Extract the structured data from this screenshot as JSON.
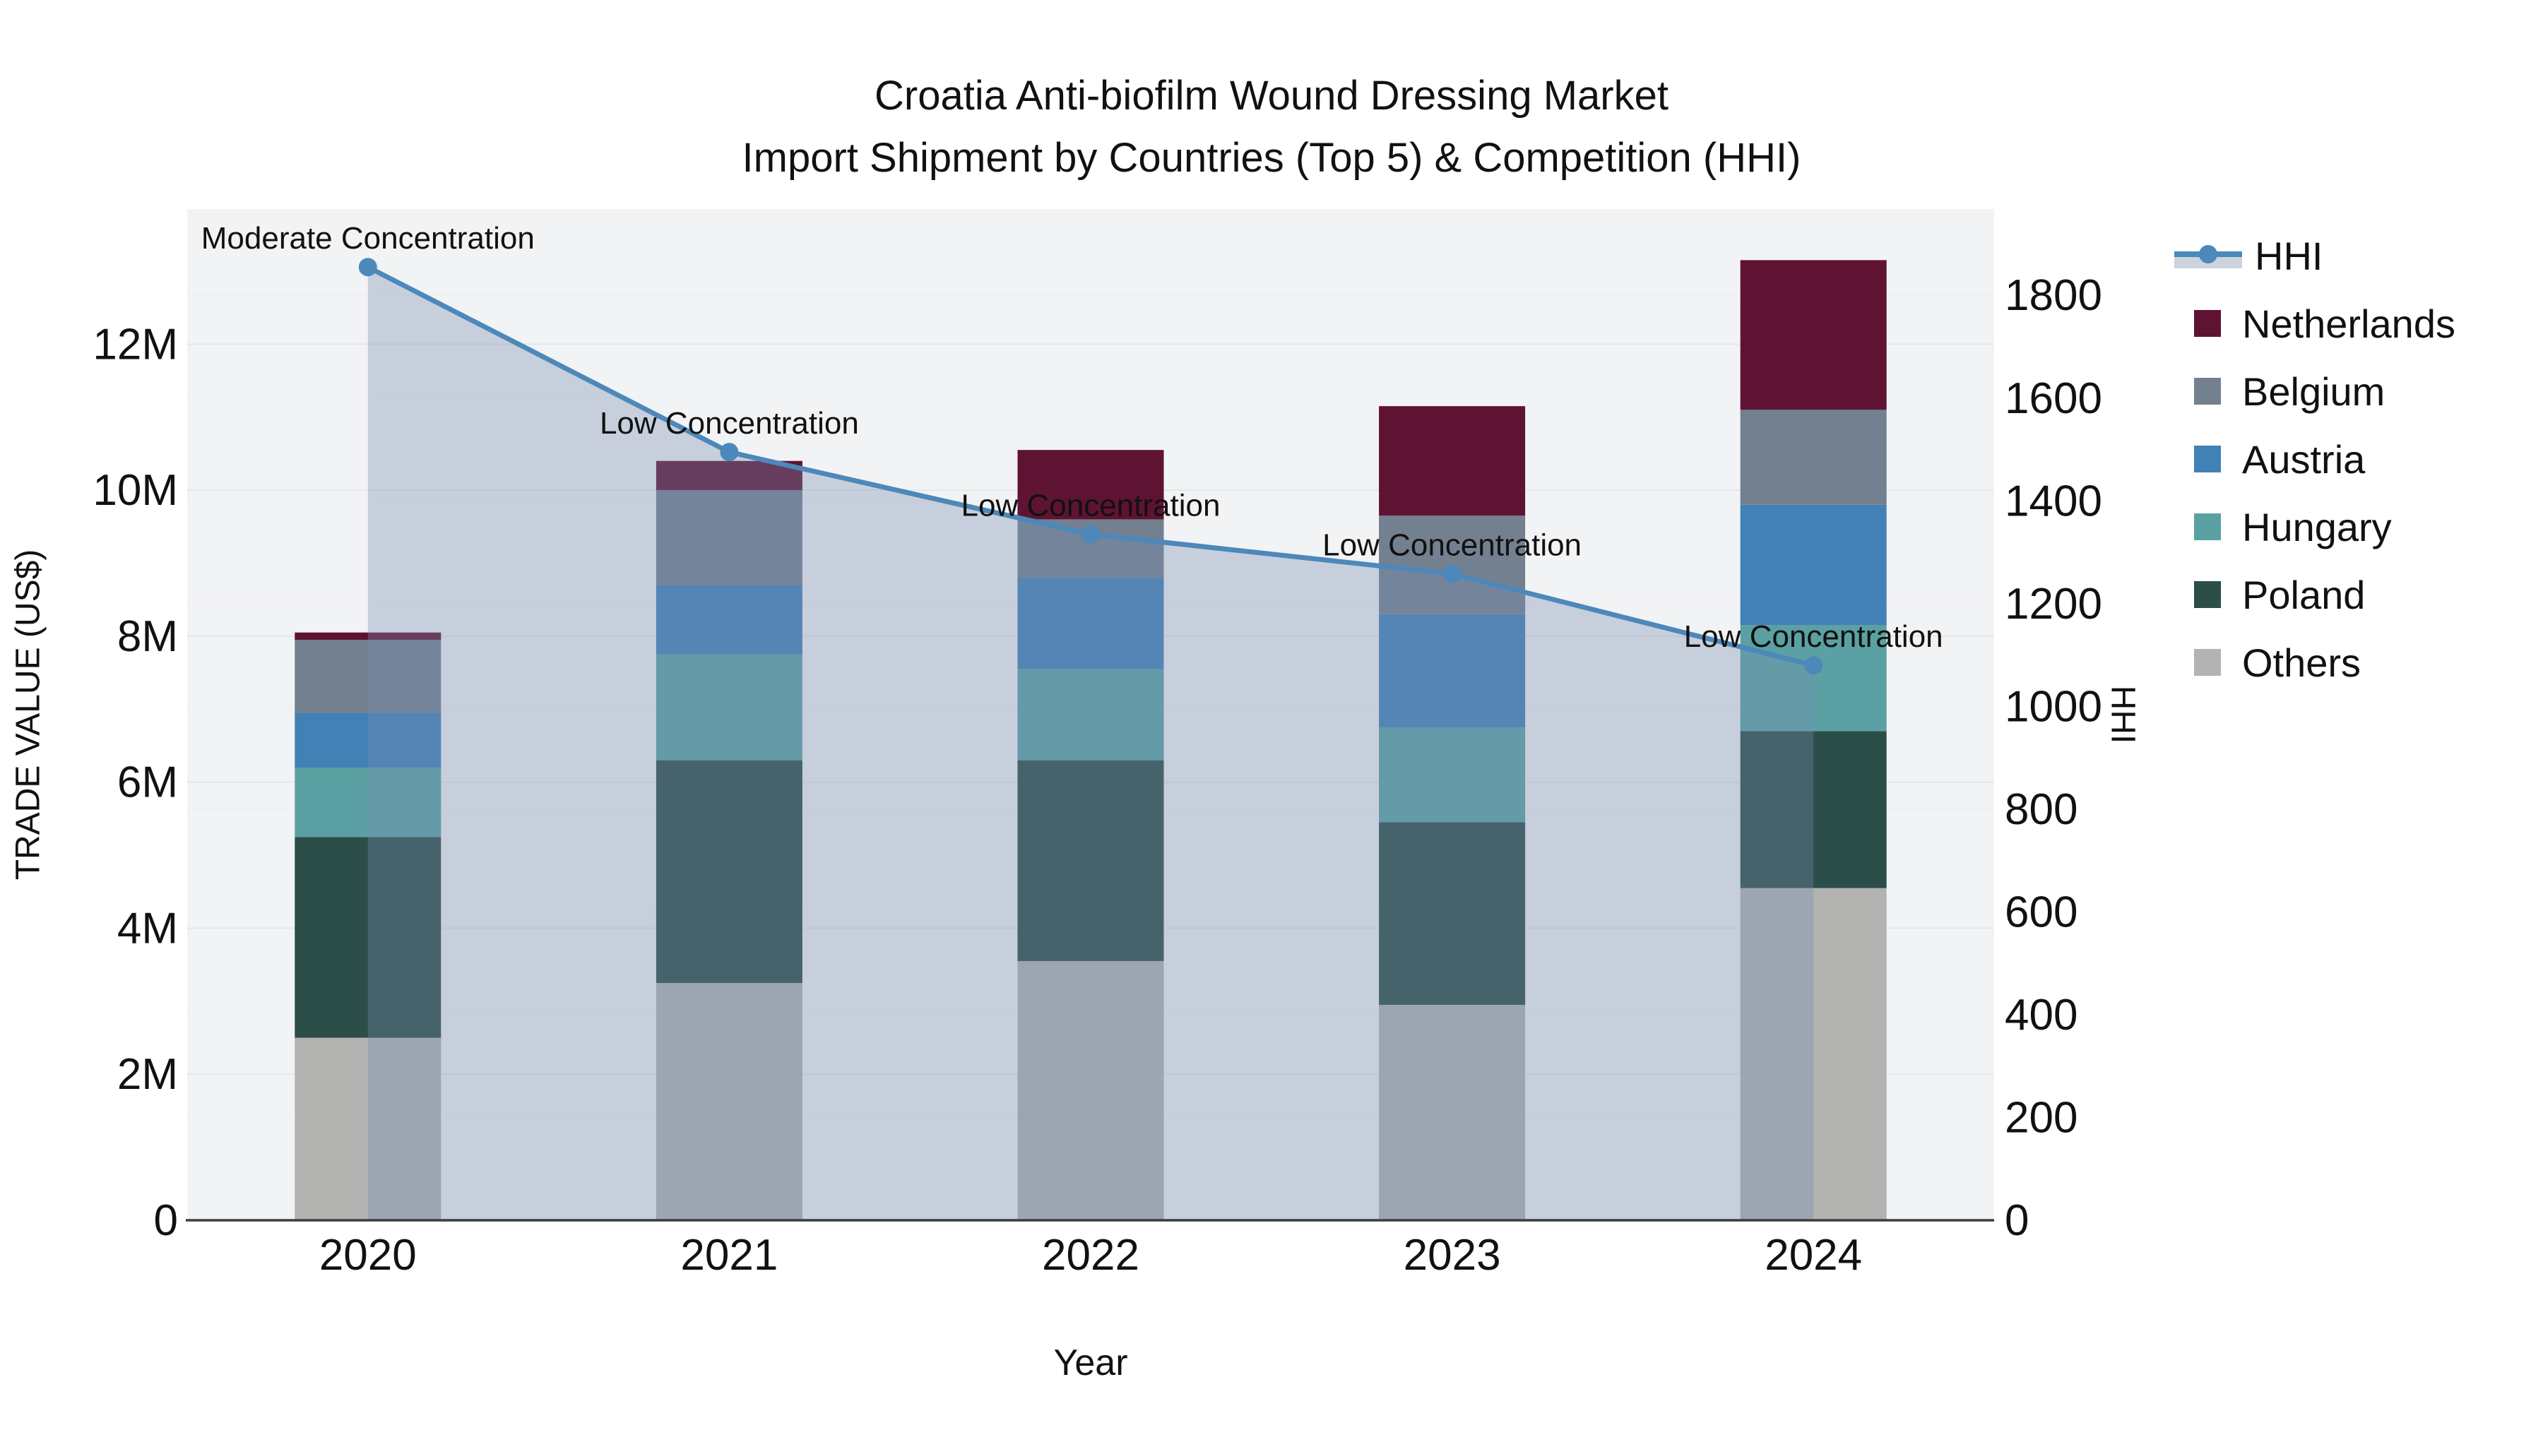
{
  "title": {
    "line1": "Croatia Anti-biofilm Wound Dressing Market",
    "line2": "Import Shipment by Countries (Top 5) & Competition (HHI)"
  },
  "axes": {
    "x_title": "Year",
    "y_left_title": "TRADE VALUE (US$)",
    "y_right_title": "HHI"
  },
  "legend": {
    "items": [
      {
        "label": "HHI",
        "type": "line",
        "color": "#4d88ba"
      },
      {
        "label": "Netherlands",
        "type": "bar",
        "color": "#5e1333"
      },
      {
        "label": "Belgium",
        "type": "bar",
        "color": "#72808f"
      },
      {
        "label": "Austria",
        "type": "bar",
        "color": "#4181b5"
      },
      {
        "label": "Hungary",
        "type": "bar",
        "color": "#5ba1a3"
      },
      {
        "label": "Poland",
        "type": "bar",
        "color": "#2c4e48"
      },
      {
        "label": "Others",
        "type": "bar",
        "color": "#b3b3b2"
      }
    ]
  },
  "chart_data": {
    "type": "combo",
    "subtype": [
      "stacked-bar",
      "line-area"
    ],
    "title": "Croatia Anti-biofilm Wound Dressing Market — Import Shipment by Countries (Top 5) & Competition (HHI)",
    "categories": [
      "2020",
      "2021",
      "2022",
      "2023",
      "2024"
    ],
    "bar_value_unit": "USD millions (left axis)",
    "series": [
      {
        "name": "Others",
        "color": "#b3b3b2",
        "values": [
          2.5,
          3.25,
          3.55,
          2.95,
          4.55
        ]
      },
      {
        "name": "Poland",
        "color": "#2c4e48",
        "values": [
          2.75,
          3.05,
          2.75,
          2.5,
          2.15
        ]
      },
      {
        "name": "Hungary",
        "color": "#5ba1a3",
        "values": [
          0.95,
          1.45,
          1.25,
          1.3,
          1.45
        ]
      },
      {
        "name": "Austria",
        "color": "#4181b5",
        "values": [
          0.75,
          0.95,
          1.25,
          1.55,
          1.65
        ]
      },
      {
        "name": "Belgium",
        "color": "#72808f",
        "values": [
          1.0,
          1.3,
          0.8,
          1.35,
          1.3
        ]
      },
      {
        "name": "Netherlands",
        "color": "#5e1333",
        "values": [
          0.1,
          0.4,
          0.95,
          1.5,
          2.05
        ]
      }
    ],
    "bar_totals": [
      8.05,
      10.4,
      10.55,
      11.15,
      13.15
    ],
    "line": {
      "name": "HHI",
      "axis": "right",
      "color": "#4d88ba",
      "fill_color": "rgba(121,141,177,0.35)",
      "values": [
        1855,
        1495,
        1335,
        1258,
        1080
      ]
    },
    "annotations": [
      "Moderate Concentration",
      "Low Concentration",
      "Low Concentration",
      "Low Concentration",
      "Low Concentration"
    ],
    "xlabel": "Year",
    "ylabel_left": "TRADE VALUE (US$)",
    "ylabel_right": "HHI",
    "y_left": {
      "ticks": [
        "0",
        "2M",
        "4M",
        "6M",
        "8M",
        "10M",
        "12M"
      ],
      "tick_values": [
        0,
        2,
        4,
        6,
        8,
        10,
        12
      ],
      "range": [
        0,
        13.85
      ]
    },
    "y_right": {
      "ticks": [
        "0",
        "200",
        "400",
        "600",
        "800",
        "1000",
        "1200",
        "1400",
        "1600",
        "1800"
      ],
      "tick_values": [
        0,
        200,
        400,
        600,
        800,
        1000,
        1200,
        1400,
        1600,
        1800
      ],
      "range": [
        0,
        1968
      ]
    },
    "grid": true,
    "legend_position": "right",
    "plot_background": "#f2f3f4",
    "grid_color_left": "#e4e7ea",
    "grid_color_right": "#eef0f2",
    "axis_line_color": "#3d3d3d",
    "text_color": "#111111"
  }
}
